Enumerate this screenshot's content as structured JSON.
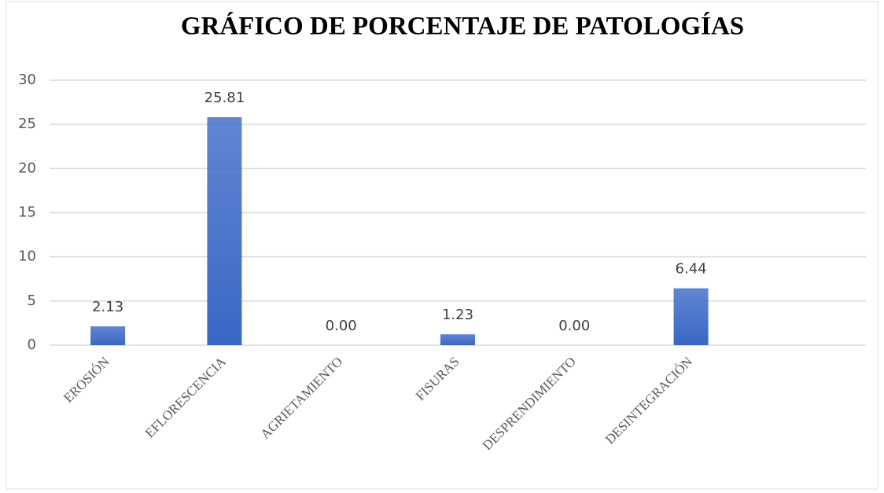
{
  "chart_data": {
    "type": "bar",
    "title": "GRÁFICO DE PORCENTAJE DE PATOLOGÍAS",
    "categories": [
      "EROSIÓN",
      "EFLORESCENCIA",
      "AGRIETAMIENTO",
      "FISURAS",
      "DESPRENDIMIENTO",
      "DESINTEGRACIÓN",
      null
    ],
    "values": [
      2.13,
      25.81,
      0,
      1.23,
      0,
      6.44,
      null
    ],
    "value_labels": [
      "2.13",
      "25.81",
      "0.00",
      "1.23",
      "0.00",
      "6.44",
      null
    ],
    "color": "#3a67c6",
    "ylim": [
      0,
      30
    ],
    "yticks": [
      0,
      5,
      10,
      15,
      20,
      25,
      30
    ],
    "grid": true
  }
}
